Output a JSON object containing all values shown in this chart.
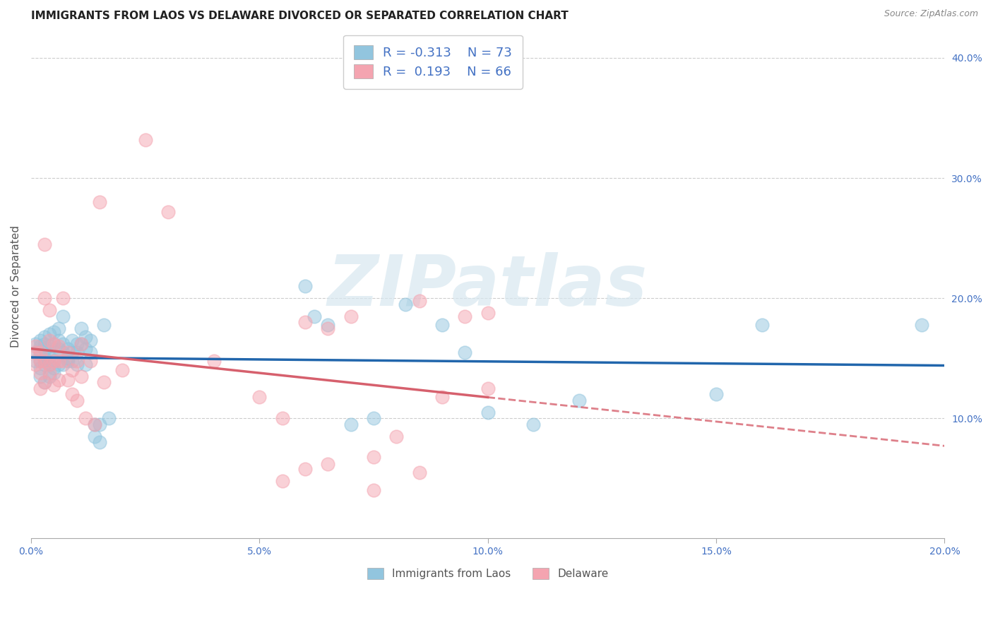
{
  "title": "IMMIGRANTS FROM LAOS VS DELAWARE DIVORCED OR SEPARATED CORRELATION CHART",
  "source": "Source: ZipAtlas.com",
  "ylabel": "Divorced or Separated",
  "color_blue": "#92c5de",
  "color_pink": "#f4a4b0",
  "color_blue_line": "#2166ac",
  "color_pink_line": "#d6606d",
  "watermark_text": "ZIPatlas",
  "legend_labels": [
    "Immigrants from Laos",
    "Delaware"
  ],
  "R_blue": -0.313,
  "N_blue": 73,
  "R_pink": 0.193,
  "N_pink": 66,
  "xmin": 0.0,
  "xmax": 0.2,
  "ymin": 0.0,
  "ymax": 0.42,
  "blue_x": [
    0.001,
    0.001,
    0.001,
    0.002,
    0.002,
    0.002,
    0.002,
    0.002,
    0.002,
    0.003,
    0.003,
    0.003,
    0.003,
    0.003,
    0.003,
    0.003,
    0.004,
    0.004,
    0.004,
    0.004,
    0.004,
    0.004,
    0.005,
    0.005,
    0.005,
    0.005,
    0.005,
    0.006,
    0.006,
    0.006,
    0.006,
    0.007,
    0.007,
    0.007,
    0.007,
    0.008,
    0.008,
    0.008,
    0.009,
    0.009,
    0.009,
    0.01,
    0.01,
    0.01,
    0.011,
    0.011,
    0.012,
    0.012,
    0.012,
    0.013,
    0.013,
    0.014,
    0.014,
    0.015,
    0.015,
    0.016,
    0.017,
    0.06,
    0.062,
    0.065,
    0.07,
    0.075,
    0.082,
    0.09,
    0.095,
    0.1,
    0.11,
    0.12,
    0.15,
    0.16,
    0.195
  ],
  "blue_y": [
    0.155,
    0.148,
    0.162,
    0.165,
    0.148,
    0.142,
    0.135,
    0.155,
    0.16,
    0.15,
    0.145,
    0.162,
    0.148,
    0.168,
    0.13,
    0.158,
    0.152,
    0.145,
    0.17,
    0.16,
    0.135,
    0.158,
    0.162,
    0.148,
    0.172,
    0.142,
    0.138,
    0.158,
    0.165,
    0.145,
    0.175,
    0.162,
    0.155,
    0.145,
    0.185,
    0.15,
    0.158,
    0.148,
    0.155,
    0.148,
    0.165,
    0.162,
    0.155,
    0.145,
    0.175,
    0.162,
    0.158,
    0.168,
    0.145,
    0.155,
    0.165,
    0.095,
    0.085,
    0.095,
    0.08,
    0.178,
    0.1,
    0.21,
    0.185,
    0.178,
    0.095,
    0.1,
    0.195,
    0.178,
    0.155,
    0.105,
    0.095,
    0.115,
    0.12,
    0.178,
    0.178
  ],
  "pink_x": [
    0.001,
    0.001,
    0.001,
    0.002,
    0.002,
    0.002,
    0.002,
    0.003,
    0.003,
    0.003,
    0.003,
    0.004,
    0.004,
    0.004,
    0.004,
    0.005,
    0.005,
    0.005,
    0.006,
    0.006,
    0.006,
    0.007,
    0.007,
    0.008,
    0.008,
    0.009,
    0.009,
    0.01,
    0.01,
    0.011,
    0.011,
    0.012,
    0.013,
    0.014,
    0.015,
    0.016,
    0.02,
    0.025,
    0.03,
    0.04,
    0.05,
    0.055,
    0.06,
    0.065,
    0.07,
    0.075,
    0.08,
    0.085,
    0.09,
    0.095,
    0.1,
    0.055,
    0.06,
    0.065,
    0.075,
    0.085,
    0.1
  ],
  "pink_y": [
    0.145,
    0.155,
    0.16,
    0.148,
    0.125,
    0.155,
    0.138,
    0.245,
    0.13,
    0.148,
    0.2,
    0.138,
    0.19,
    0.165,
    0.145,
    0.162,
    0.148,
    0.128,
    0.148,
    0.132,
    0.16,
    0.2,
    0.148,
    0.132,
    0.155,
    0.14,
    0.12,
    0.148,
    0.115,
    0.162,
    0.135,
    0.1,
    0.148,
    0.095,
    0.28,
    0.13,
    0.14,
    0.332,
    0.272,
    0.148,
    0.118,
    0.1,
    0.18,
    0.175,
    0.185,
    0.068,
    0.085,
    0.055,
    0.118,
    0.185,
    0.188,
    0.048,
    0.058,
    0.062,
    0.04,
    0.198,
    0.125
  ]
}
